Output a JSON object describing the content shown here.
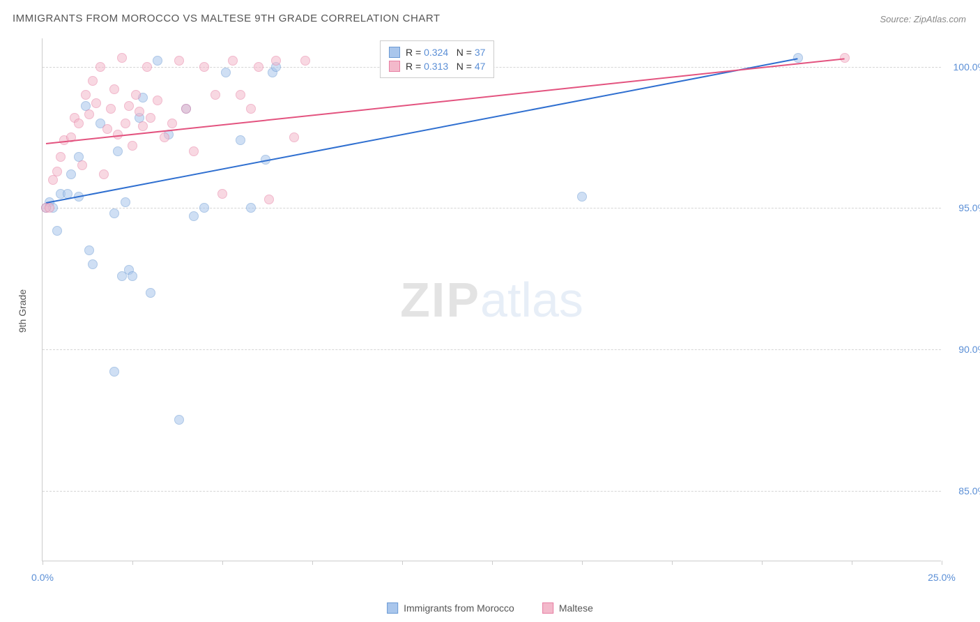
{
  "title": "IMMIGRANTS FROM MOROCCO VS MALTESE 9TH GRADE CORRELATION CHART",
  "source": "Source: ZipAtlas.com",
  "y_axis_label": "9th Grade",
  "watermark": {
    "part1": "ZIP",
    "part2": "atlas"
  },
  "chart": {
    "type": "scatter",
    "xlim": [
      0,
      25
    ],
    "ylim": [
      82.5,
      101
    ],
    "x_ticks": [
      0,
      2.5,
      5,
      7.5,
      10,
      12.5,
      15,
      17.5,
      20,
      22.5,
      25
    ],
    "x_tick_labels": {
      "0": "0.0%",
      "25": "25.0%"
    },
    "y_gridlines": [
      85,
      90,
      95,
      100
    ],
    "y_tick_labels": {
      "85": "85.0%",
      "90": "90.0%",
      "95": "95.0%",
      "100": "100.0%"
    },
    "background_color": "#ffffff",
    "grid_color": "#d5d5d5",
    "axis_color": "#cccccc",
    "tick_label_color": "#5b8fd6"
  },
  "series": [
    {
      "id": "morocco",
      "label": "Immigrants from Morocco",
      "fill_color": "#a9c6ec",
      "stroke_color": "#6b9ad4",
      "line_color": "#2f6fd0",
      "R": "0.324",
      "N": "37",
      "trend": {
        "x1": 0.1,
        "y1": 95.2,
        "x2": 21.0,
        "y2": 100.3
      },
      "points": [
        [
          0.1,
          95.0
        ],
        [
          0.2,
          95.2
        ],
        [
          0.3,
          95.0
        ],
        [
          0.5,
          95.5
        ],
        [
          0.4,
          94.2
        ],
        [
          0.8,
          96.2
        ],
        [
          1.0,
          95.4
        ],
        [
          1.3,
          93.5
        ],
        [
          1.4,
          93.0
        ],
        [
          1.6,
          98.0
        ],
        [
          1.2,
          98.6
        ],
        [
          1.0,
          96.8
        ],
        [
          2.0,
          94.8
        ],
        [
          2.2,
          92.6
        ],
        [
          2.4,
          92.8
        ],
        [
          2.7,
          98.2
        ],
        [
          2.8,
          98.9
        ],
        [
          2.3,
          95.2
        ],
        [
          2.5,
          92.6
        ],
        [
          3.0,
          92.0
        ],
        [
          3.2,
          100.2
        ],
        [
          3.5,
          97.6
        ],
        [
          4.0,
          98.5
        ],
        [
          4.2,
          94.7
        ],
        [
          4.5,
          95.0
        ],
        [
          5.1,
          99.8
        ],
        [
          5.5,
          97.4
        ],
        [
          5.8,
          95.0
        ],
        [
          6.2,
          96.7
        ],
        [
          6.4,
          99.8
        ],
        [
          6.5,
          100.0
        ],
        [
          2.0,
          89.2
        ],
        [
          3.8,
          87.5
        ],
        [
          15.0,
          95.4
        ],
        [
          21.0,
          100.3
        ],
        [
          2.1,
          97.0
        ],
        [
          0.7,
          95.5
        ]
      ]
    },
    {
      "id": "maltese",
      "label": "Maltese",
      "fill_color": "#f3b9cb",
      "stroke_color": "#e77fa3",
      "line_color": "#e3537f",
      "R": "0.313",
      "N": "47",
      "trend": {
        "x1": 0.1,
        "y1": 97.3,
        "x2": 22.3,
        "y2": 100.3
      },
      "points": [
        [
          0.1,
          95.0
        ],
        [
          0.3,
          96.0
        ],
        [
          0.5,
          96.8
        ],
        [
          0.6,
          97.4
        ],
        [
          0.8,
          97.5
        ],
        [
          0.9,
          98.2
        ],
        [
          1.0,
          98.0
        ],
        [
          1.1,
          96.5
        ],
        [
          1.2,
          99.0
        ],
        [
          1.3,
          98.3
        ],
        [
          1.4,
          99.5
        ],
        [
          1.5,
          98.7
        ],
        [
          1.6,
          100.0
        ],
        [
          1.8,
          97.8
        ],
        [
          1.9,
          98.5
        ],
        [
          2.0,
          99.2
        ],
        [
          2.1,
          97.6
        ],
        [
          2.2,
          100.3
        ],
        [
          2.3,
          98.0
        ],
        [
          2.4,
          98.6
        ],
        [
          2.5,
          97.2
        ],
        [
          2.6,
          99.0
        ],
        [
          2.7,
          98.4
        ],
        [
          2.8,
          97.9
        ],
        [
          2.9,
          100.0
        ],
        [
          3.0,
          98.2
        ],
        [
          3.2,
          98.8
        ],
        [
          3.4,
          97.5
        ],
        [
          3.6,
          98.0
        ],
        [
          3.8,
          100.2
        ],
        [
          4.0,
          98.5
        ],
        [
          4.2,
          97.0
        ],
        [
          4.5,
          100.0
        ],
        [
          4.8,
          99.0
        ],
        [
          5.0,
          95.5
        ],
        [
          5.3,
          100.2
        ],
        [
          5.5,
          99.0
        ],
        [
          5.8,
          98.5
        ],
        [
          6.0,
          100.0
        ],
        [
          6.3,
          95.3
        ],
        [
          6.5,
          100.2
        ],
        [
          7.0,
          97.5
        ],
        [
          7.3,
          100.2
        ],
        [
          1.7,
          96.2
        ],
        [
          0.4,
          96.3
        ],
        [
          0.2,
          95.0
        ],
        [
          22.3,
          100.3
        ]
      ]
    }
  ],
  "legend_box": {
    "rows": [
      {
        "series": "morocco",
        "text_prefix": "R =",
        "text_mid": "N ="
      },
      {
        "series": "maltese",
        "text_prefix": "R =",
        "text_mid": "N ="
      }
    ]
  }
}
